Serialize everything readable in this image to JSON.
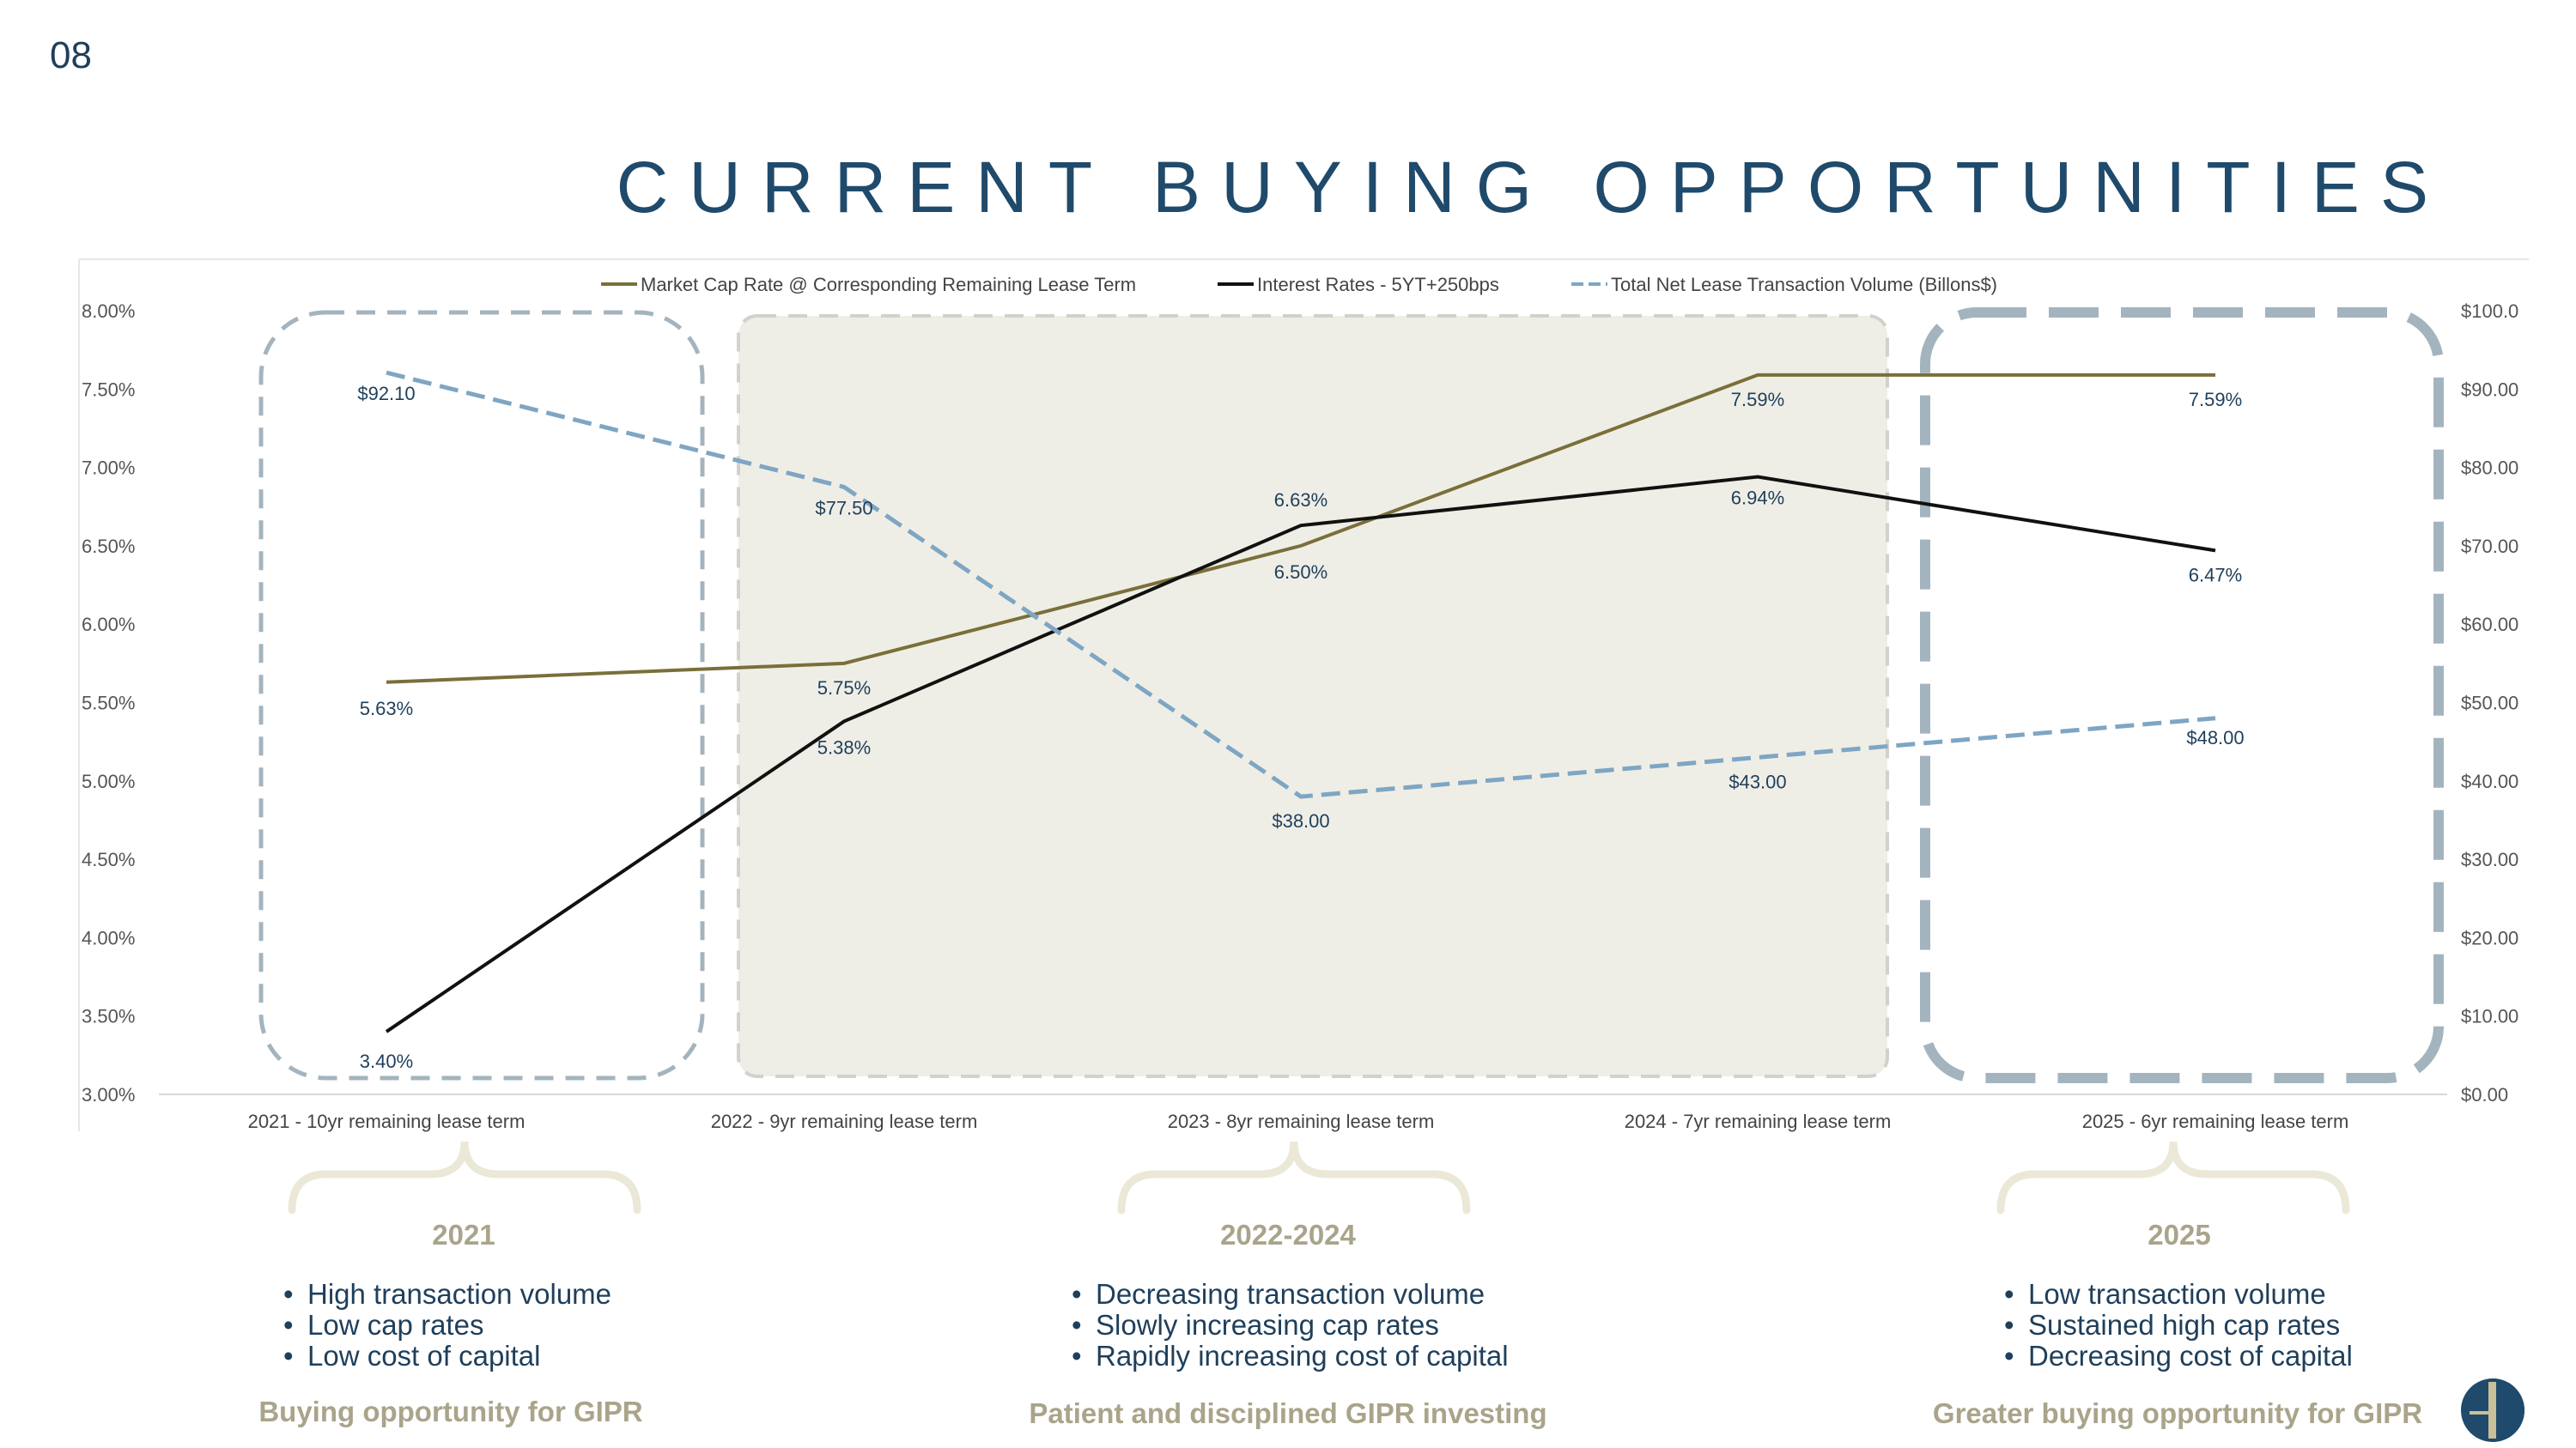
{
  "page_number": "08",
  "title": "CURRENT BUYING OPPORTUNITIES",
  "colors": {
    "cap_rate": "#7a6f3a",
    "interest": "#111111",
    "volume": "#7ea6c4",
    "title": "#1f4a6b",
    "accent_text": "#a9a48a",
    "bullet_text": "#1f3f5b",
    "highlight_fill": "#efeee6",
    "brace": "#ebe8d8"
  },
  "chart_data": {
    "type": "line",
    "categories": [
      "2021 - 10yr remaining lease term",
      "2022 - 9yr remaining lease term",
      "2023 - 8yr remaining lease term",
      "2024 - 7yr remaining lease term",
      "2025 - 6yr remaining lease term"
    ],
    "series": [
      {
        "name": "Market Cap Rate @ Corresponding Remaining Lease Term",
        "axis": "left",
        "style": "solid",
        "values": [
          5.63,
          5.75,
          6.5,
          7.59,
          7.59
        ],
        "labels": [
          "5.63%",
          "5.75%",
          "6.50%",
          "7.59%",
          "7.59%"
        ]
      },
      {
        "name": "Interest Rates - 5YT+250bps",
        "axis": "left",
        "style": "solid",
        "values": [
          3.4,
          5.38,
          6.63,
          6.94,
          6.47
        ],
        "labels": [
          "3.40%",
          "5.38%",
          "6.63%",
          "6.94%",
          "6.47%"
        ]
      },
      {
        "name": "Total Net Lease Transaction Volume (Billons$)",
        "axis": "right",
        "style": "dashed",
        "values": [
          92.1,
          77.5,
          38.0,
          43.0,
          48.0
        ],
        "labels": [
          "$92.10",
          "$77.50",
          "$38.00",
          "$43.00",
          "$48.00"
        ]
      }
    ],
    "ylim": [
      3.0,
      8.0
    ],
    "y_ticks": [
      "8.00%",
      "7.50%",
      "7.00%",
      "6.50%",
      "6.00%",
      "5.50%",
      "5.00%",
      "4.50%",
      "4.00%",
      "3.50%",
      "3.00%"
    ],
    "y2lim": [
      0,
      100
    ],
    "y2_ticks": [
      "$100.0",
      "$90.00",
      "$80.00",
      "$70.00",
      "$60.00",
      "$50.00",
      "$40.00",
      "$30.00",
      "$20.00",
      "$10.00",
      "$0.00"
    ],
    "legend_position": "top-center",
    "grid": false
  },
  "groups": [
    {
      "title": "2021",
      "bullets": [
        "High transaction volume",
        "Low cap rates",
        "Low cost of capital"
      ],
      "footer": "Buying opportunity for GIPR"
    },
    {
      "title": "2022-2024",
      "bullets": [
        "Decreasing transaction volume",
        "Slowly increasing cap rates",
        "Rapidly increasing cost of capital"
      ],
      "footer": "Patient and disciplined GIPR investing"
    },
    {
      "title": "2025",
      "bullets": [
        "Low transaction volume",
        "Sustained high cap rates",
        "Decreasing cost of capital"
      ],
      "footer": "Greater buying opportunity for GIPR"
    }
  ]
}
